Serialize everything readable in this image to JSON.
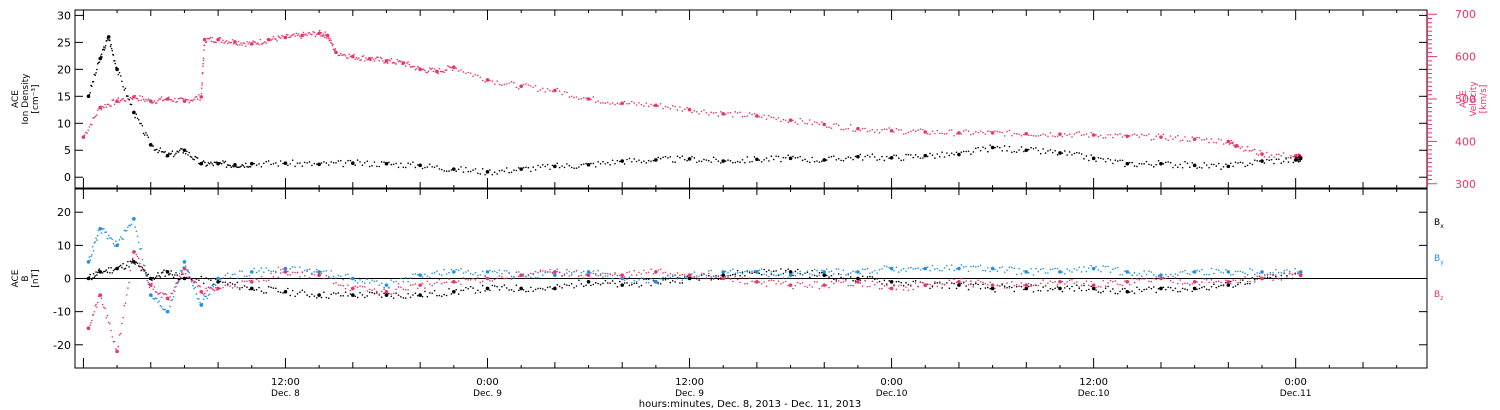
{
  "colors": {
    "density": "#000000",
    "velocity": "#e8356a",
    "bx": "#000000",
    "by": "#1f8fe8",
    "bz": "#e8356a",
    "axis": "#000000"
  },
  "chart_data": [
    {
      "type": "scatter",
      "panel": "top",
      "left_axis": {
        "label_lines": [
          "ACE",
          "Ion Density",
          "[cm⁻³]"
        ],
        "ylim": [
          -2,
          31
        ],
        "ticks": [
          0,
          5,
          10,
          15,
          20,
          25,
          30
        ]
      },
      "right_axis": {
        "label_lines": [
          "ACE",
          "Velocity",
          "[km/s]"
        ],
        "ylim": [
          290,
          710
        ],
        "ticks": [
          300,
          400,
          500,
          600,
          700
        ]
      },
      "series": [
        {
          "name": "density",
          "axis": "left",
          "x": [
            0.3,
            1.0,
            1.5,
            2.0,
            3.0,
            4.0,
            5.0,
            6.0,
            7.0,
            8.0,
            9.0,
            10.0,
            12.0,
            14.0,
            16.0,
            18.0,
            20.0,
            22.0,
            24.0,
            26.0,
            28.0,
            30.0,
            32.0,
            34.0,
            36.0,
            38.0,
            40.0,
            42.0,
            44.0,
            46.0,
            48.0,
            50.0,
            52.0,
            54.0,
            56.0,
            58.0,
            60.0,
            62.0,
            64.0,
            66.0,
            68.0,
            70.0,
            72.0,
            72.3
          ],
          "y": [
            15,
            22,
            26,
            20,
            12,
            6,
            4,
            5,
            2.5,
            2.5,
            2.3,
            2.5,
            2.6,
            2.4,
            2.6,
            2.5,
            2.2,
            1.5,
            1.0,
            1.5,
            2.0,
            2.3,
            3.0,
            3.2,
            3.4,
            3.0,
            3.3,
            3.5,
            3.2,
            3.8,
            3.6,
            4.0,
            4.2,
            5.5,
            5.0,
            4.5,
            3.5,
            2.5,
            2.5,
            2.2,
            2.0,
            3.0,
            3.2,
            3.5
          ]
        },
        {
          "name": "velocity",
          "axis": "right",
          "x": [
            0.0,
            1.0,
            2.0,
            3.0,
            4.0,
            5.0,
            6.0,
            7.0,
            7.2,
            8.0,
            9.0,
            10.0,
            11.0,
            12.0,
            13.0,
            14.0,
            14.5,
            15.0,
            16.0,
            17.0,
            18.0,
            19.0,
            20.0,
            21.0,
            22.0,
            24.0,
            26.0,
            28.0,
            30.0,
            32.0,
            34.0,
            36.0,
            38.0,
            40.0,
            42.0,
            44.0,
            46.0,
            48.0,
            50.0,
            52.0,
            54.0,
            56.0,
            58.0,
            60.0,
            62.0,
            64.0,
            66.0,
            68.0,
            68.5,
            70.0,
            72.0,
            72.3
          ],
          "y": [
            410,
            480,
            495,
            505,
            495,
            500,
            495,
            505,
            640,
            640,
            635,
            630,
            640,
            645,
            650,
            655,
            650,
            610,
            600,
            595,
            590,
            585,
            570,
            565,
            575,
            545,
            530,
            520,
            500,
            490,
            485,
            475,
            465,
            460,
            450,
            440,
            430,
            425,
            422,
            420,
            420,
            418,
            417,
            415,
            412,
            410,
            405,
            400,
            390,
            370,
            365,
            362
          ]
        }
      ]
    },
    {
      "type": "scatter",
      "panel": "bottom",
      "left_axis": {
        "label_lines": [
          "ACE",
          "B",
          "[nT]"
        ],
        "ylim": [
          -27,
          27
        ],
        "ticks": [
          -20,
          -10,
          0,
          10,
          20
        ]
      },
      "series": [
        {
          "name": "Bx",
          "x": [
            0.3,
            1.0,
            2.0,
            3.0,
            4.0,
            5.0,
            6.0,
            8.0,
            10.0,
            12.0,
            14.0,
            16.0,
            18.0,
            20.0,
            22.0,
            24.0,
            26.0,
            28.0,
            30.0,
            32.0,
            34.0,
            36.0,
            38.0,
            40.0,
            42.0,
            44.0,
            46.0,
            48.0,
            50.0,
            52.0,
            54.0,
            56.0,
            58.0,
            60.0,
            62.0,
            64.0,
            66.0,
            68.0,
            70.0,
            72.3
          ],
          "y": [
            0,
            2,
            3,
            5,
            0,
            2,
            0,
            -1,
            -3,
            -4,
            -5,
            -5,
            -5,
            -5,
            -4,
            -3,
            -3,
            -3,
            -1,
            -2,
            -1,
            0,
            1,
            2,
            2,
            1,
            0,
            -1,
            -2,
            -2,
            -3,
            -3,
            -3,
            -3,
            -4,
            -3,
            -3,
            -2,
            0,
            1
          ]
        },
        {
          "name": "By",
          "x": [
            0.3,
            1.0,
            2.0,
            3.0,
            4.0,
            5.0,
            6.0,
            7.0,
            8.0,
            10.0,
            12.0,
            14.0,
            16.0,
            18.0,
            20.0,
            22.0,
            24.0,
            26.0,
            28.0,
            30.0,
            32.0,
            34.0,
            36.0,
            38.0,
            40.0,
            42.0,
            44.0,
            46.0,
            48.0,
            50.0,
            52.0,
            54.0,
            56.0,
            58.0,
            60.0,
            62.0,
            64.0,
            66.0,
            68.0,
            70.0,
            72.3
          ],
          "y": [
            5,
            15,
            10,
            18,
            -5,
            -10,
            5,
            -8,
            0,
            2,
            3,
            2,
            0,
            -2,
            1,
            2,
            2,
            1,
            1,
            2,
            0,
            -1,
            1,
            2,
            2,
            1,
            2,
            2,
            3,
            3,
            3,
            3,
            2,
            2,
            3,
            2,
            1,
            2,
            2,
            2,
            2
          ]
        },
        {
          "name": "Bz",
          "x": [
            0.3,
            1.0,
            2.0,
            3.0,
            4.0,
            5.0,
            6.0,
            7.0,
            8.0,
            10.0,
            12.0,
            14.0,
            16.0,
            18.0,
            20.0,
            22.0,
            24.0,
            26.0,
            28.0,
            30.0,
            32.0,
            34.0,
            36.0,
            38.0,
            40.0,
            42.0,
            44.0,
            46.0,
            48.0,
            50.0,
            52.0,
            54.0,
            56.0,
            58.0,
            60.0,
            62.0,
            64.0,
            66.0,
            68.0,
            70.0,
            72.3
          ],
          "y": [
            -15,
            -5,
            -22,
            8,
            -2,
            -6,
            3,
            -4,
            -3,
            -1,
            2,
            1,
            -3,
            -4,
            -2,
            -1,
            0,
            1,
            2,
            1,
            1,
            2,
            1,
            0,
            -1,
            -2,
            -2,
            -1,
            -3,
            -2,
            -1,
            -2,
            -2,
            -1,
            -2,
            -1,
            0,
            -1,
            -1,
            0,
            1
          ]
        }
      ],
      "legend": [
        {
          "main": "B",
          "sub": "x",
          "color": "#000000"
        },
        {
          "main": "B",
          "sub": "y",
          "color": "#1f8fe8"
        },
        {
          "main": "B",
          "sub": "z",
          "color": "#e8356a"
        }
      ]
    }
  ],
  "x_axis": {
    "xlim": [
      -0.5,
      79.8
    ],
    "major_ticks": [
      {
        "x": 12,
        "time": "12:00",
        "day": "Dec. 8"
      },
      {
        "x": 24,
        "time": "0:00",
        "day": "Dec. 9"
      },
      {
        "x": 36,
        "time": "12:00",
        "day": "Dec. 9"
      },
      {
        "x": 48,
        "time": "0:00",
        "day": "Dec.10"
      },
      {
        "x": 60,
        "time": "12:00",
        "day": "Dec.10"
      },
      {
        "x": 72,
        "time": "0:00",
        "day": "Dec.11"
      }
    ],
    "title": "hours:minutes, Dec. 8, 2013 - Dec. 11, 2013"
  }
}
